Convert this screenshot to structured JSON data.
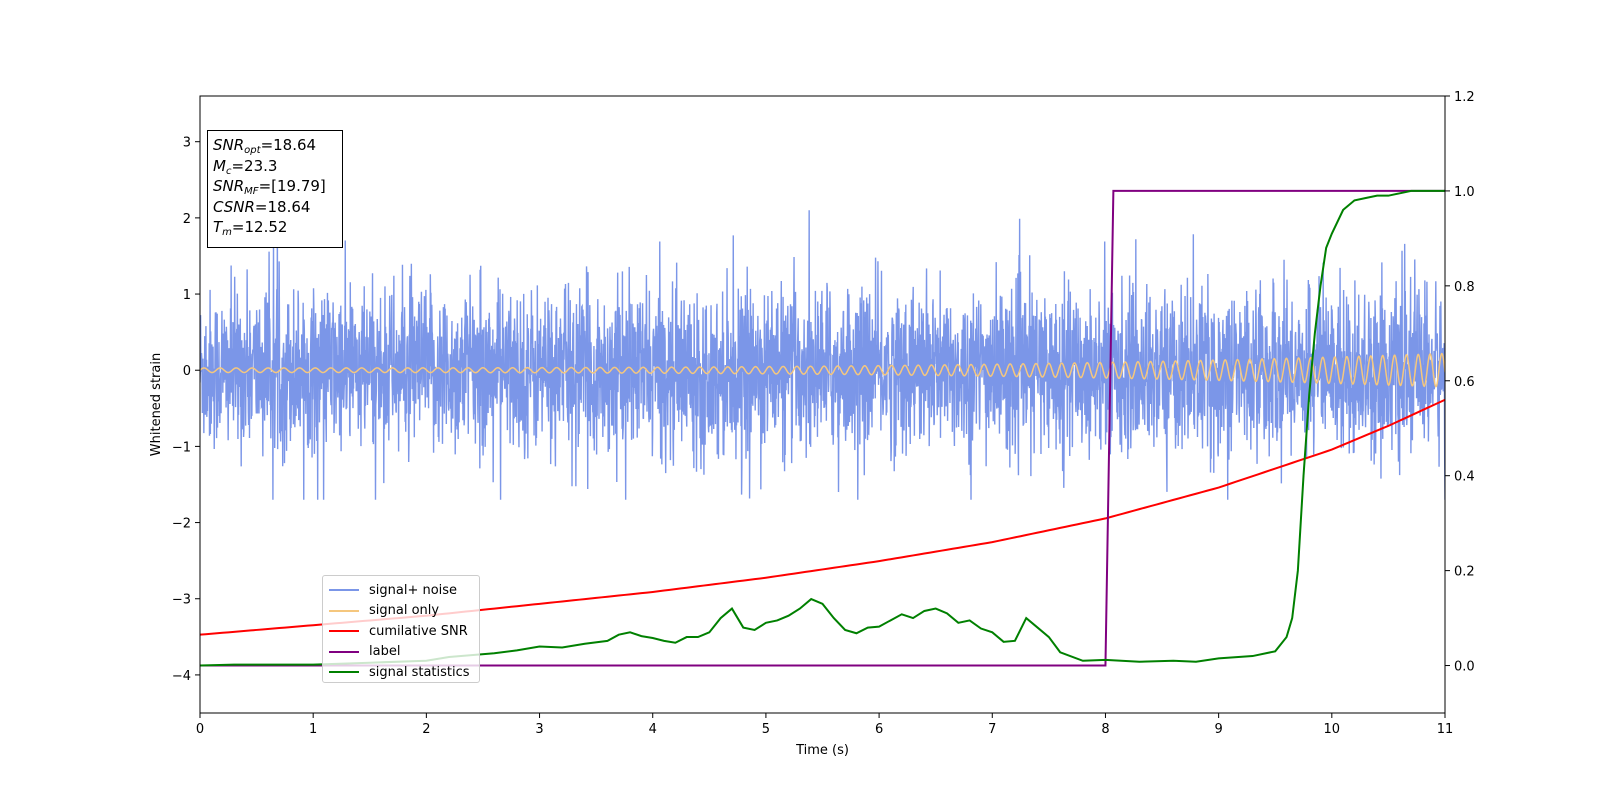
{
  "chart_data": {
    "type": "line",
    "xlabel": "Time (s)",
    "ylabel": "Whitened strain",
    "xlim": [
      0,
      11
    ],
    "ylim": [
      -4.5,
      3.6
    ],
    "ylim_right": [
      -0.1,
      1.2
    ],
    "x_ticks": [
      "0",
      "1",
      "2",
      "3",
      "4",
      "5",
      "6",
      "7",
      "8",
      "9",
      "10",
      "11"
    ],
    "y_ticks": [
      "3",
      "2",
      "1",
      "0",
      "−1",
      "−2",
      "−3",
      "−4"
    ],
    "y_ticks_right": [
      "1.2",
      "1.0",
      "0.8",
      "0.6",
      "0.4",
      "0.2",
      "0.0"
    ],
    "legend_position": "lower-left",
    "annotation": {
      "rows": [
        {
          "sym": "SNR",
          "sub": "opt",
          "val": "=18.64"
        },
        {
          "sym": "M",
          "sub": "c",
          "val": "=23.3"
        },
        {
          "sym": "SNR",
          "sub": "MF",
          "val": "=[19.79]"
        },
        {
          "sym": "CSNR",
          "sub": "",
          "val": "=18.64"
        },
        {
          "sym": "T",
          "sub": "m",
          "val": "=12.52"
        }
      ]
    },
    "series": [
      {
        "name": "signal+ noise",
        "axis": "left",
        "color": "#7b96e8",
        "kind": "noise",
        "envelope": [
          -1.7,
          2.1
        ]
      },
      {
        "name": "signal only",
        "axis": "left",
        "color": "#f5c77e",
        "kind": "chirp",
        "amplitude_start": 0.03,
        "amplitude_end": 0.22
      },
      {
        "name": "cumilative SNR",
        "axis": "right",
        "color": "#ff0000",
        "x": [
          0,
          1,
          2,
          3,
          4,
          5,
          6,
          7,
          8,
          9,
          10,
          10.5,
          11
        ],
        "y": [
          0.065,
          0.085,
          0.105,
          0.13,
          0.155,
          0.185,
          0.22,
          0.26,
          0.31,
          0.375,
          0.455,
          0.505,
          0.56
        ]
      },
      {
        "name": "label",
        "axis": "right",
        "color": "#800080",
        "x": [
          0,
          8.0,
          8.07,
          11
        ],
        "y": [
          0.0,
          0.0,
          1.0,
          1.0
        ]
      },
      {
        "name": "signal statistics",
        "axis": "right",
        "color": "#008000",
        "x": [
          0,
          0.3,
          1.0,
          1.5,
          2.0,
          2.2,
          2.4,
          2.6,
          2.8,
          3.0,
          3.2,
          3.4,
          3.6,
          3.7,
          3.8,
          3.9,
          4.0,
          4.1,
          4.2,
          4.3,
          4.4,
          4.5,
          4.6,
          4.7,
          4.8,
          4.9,
          5.0,
          5.1,
          5.2,
          5.3,
          5.4,
          5.5,
          5.6,
          5.7,
          5.8,
          5.9,
          6.0,
          6.1,
          6.2,
          6.3,
          6.4,
          6.5,
          6.6,
          6.7,
          6.8,
          6.9,
          7.0,
          7.1,
          7.2,
          7.3,
          7.4,
          7.5,
          7.6,
          7.8,
          8.0,
          8.3,
          8.6,
          8.8,
          9.0,
          9.3,
          9.5,
          9.6,
          9.65,
          9.7,
          9.75,
          9.8,
          9.85,
          9.9,
          9.95,
          10.0,
          10.1,
          10.2,
          10.3,
          10.4,
          10.5,
          10.6,
          10.7,
          10.8,
          10.9,
          11.0
        ],
        "y": [
          0.0,
          0.002,
          0.002,
          0.006,
          0.01,
          0.018,
          0.022,
          0.026,
          0.032,
          0.04,
          0.038,
          0.046,
          0.052,
          0.065,
          0.07,
          0.062,
          0.058,
          0.052,
          0.048,
          0.06,
          0.06,
          0.07,
          0.1,
          0.12,
          0.08,
          0.075,
          0.09,
          0.095,
          0.105,
          0.12,
          0.14,
          0.13,
          0.1,
          0.075,
          0.068,
          0.08,
          0.082,
          0.095,
          0.108,
          0.1,
          0.115,
          0.12,
          0.11,
          0.09,
          0.095,
          0.078,
          0.07,
          0.05,
          0.052,
          0.1,
          0.08,
          0.06,
          0.028,
          0.01,
          0.012,
          0.008,
          0.01,
          0.008,
          0.015,
          0.02,
          0.03,
          0.06,
          0.1,
          0.2,
          0.4,
          0.57,
          0.7,
          0.8,
          0.88,
          0.91,
          0.96,
          0.98,
          0.985,
          0.99,
          0.99,
          0.995,
          1.0,
          1.0,
          1.0,
          1.0
        ]
      }
    ]
  }
}
